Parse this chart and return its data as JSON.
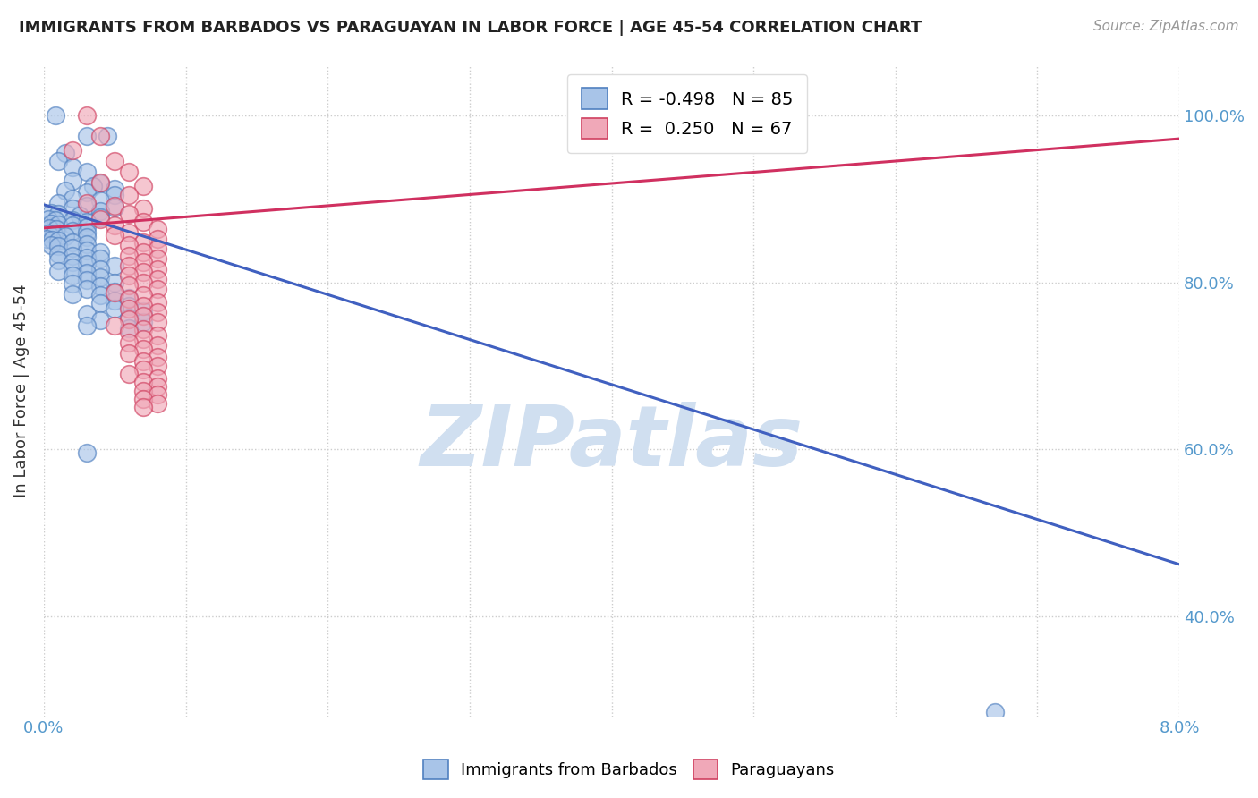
{
  "title": "IMMIGRANTS FROM BARBADOS VS PARAGUAYAN IN LABOR FORCE | AGE 45-54 CORRELATION CHART",
  "source": "Source: ZipAtlas.com",
  "ylabel": "In Labor Force | Age 45-54",
  "x_min": 0.0,
  "x_max": 0.08,
  "y_min": 0.28,
  "y_max": 1.06,
  "x_ticks": [
    0.0,
    0.01,
    0.02,
    0.03,
    0.04,
    0.05,
    0.06,
    0.07,
    0.08
  ],
  "x_tick_labels": [
    "0.0%",
    "",
    "",
    "",
    "",
    "",
    "",
    "",
    "8.0%"
  ],
  "y_ticks": [
    0.4,
    0.6,
    0.8,
    1.0
  ],
  "y_tick_labels": [
    "40.0%",
    "60.0%",
    "80.0%",
    "100.0%"
  ],
  "series1_color": "#a8c4e8",
  "series2_color": "#f0a8b8",
  "series1_edge": "#5080c0",
  "series2_edge": "#d04060",
  "trend1_color": "#4060c0",
  "trend2_color": "#d03060",
  "watermark": "ZIPatlas",
  "watermark_color": "#d0dff0",
  "blue_trend_x": [
    0.0,
    0.08
  ],
  "blue_trend_y": [
    0.893,
    0.462
  ],
  "pink_trend_x": [
    0.0,
    0.08
  ],
  "pink_trend_y": [
    0.865,
    0.972
  ],
  "blue_dots": [
    [
      0.0008,
      1.0
    ],
    [
      0.003,
      0.975
    ],
    [
      0.0015,
      0.955
    ],
    [
      0.0045,
      0.975
    ],
    [
      0.001,
      0.945
    ],
    [
      0.002,
      0.938
    ],
    [
      0.003,
      0.932
    ],
    [
      0.002,
      0.922
    ],
    [
      0.004,
      0.918
    ],
    [
      0.0035,
      0.915
    ],
    [
      0.005,
      0.912
    ],
    [
      0.0015,
      0.91
    ],
    [
      0.003,
      0.908
    ],
    [
      0.005,
      0.905
    ],
    [
      0.002,
      0.9
    ],
    [
      0.004,
      0.898
    ],
    [
      0.001,
      0.895
    ],
    [
      0.003,
      0.892
    ],
    [
      0.005,
      0.89
    ],
    [
      0.002,
      0.888
    ],
    [
      0.004,
      0.885
    ],
    [
      0.0005,
      0.883
    ],
    [
      0.001,
      0.882
    ],
    [
      0.0025,
      0.88
    ],
    [
      0.004,
      0.878
    ],
    [
      0.0003,
      0.876
    ],
    [
      0.0008,
      0.875
    ],
    [
      0.002,
      0.874
    ],
    [
      0.003,
      0.872
    ],
    [
      0.0005,
      0.87
    ],
    [
      0.001,
      0.869
    ],
    [
      0.002,
      0.868
    ],
    [
      0.003,
      0.866
    ],
    [
      0.0004,
      0.865
    ],
    [
      0.0009,
      0.864
    ],
    [
      0.002,
      0.862
    ],
    [
      0.003,
      0.86
    ],
    [
      0.0003,
      0.858
    ],
    [
      0.0007,
      0.857
    ],
    [
      0.0015,
      0.855
    ],
    [
      0.003,
      0.854
    ],
    [
      0.0002,
      0.852
    ],
    [
      0.0006,
      0.851
    ],
    [
      0.001,
      0.85
    ],
    [
      0.002,
      0.848
    ],
    [
      0.003,
      0.846
    ],
    [
      0.0005,
      0.844
    ],
    [
      0.001,
      0.843
    ],
    [
      0.002,
      0.841
    ],
    [
      0.003,
      0.838
    ],
    [
      0.004,
      0.836
    ],
    [
      0.001,
      0.834
    ],
    [
      0.002,
      0.832
    ],
    [
      0.003,
      0.83
    ],
    [
      0.004,
      0.828
    ],
    [
      0.001,
      0.826
    ],
    [
      0.002,
      0.824
    ],
    [
      0.003,
      0.822
    ],
    [
      0.005,
      0.82
    ],
    [
      0.002,
      0.818
    ],
    [
      0.004,
      0.816
    ],
    [
      0.001,
      0.813
    ],
    [
      0.003,
      0.811
    ],
    [
      0.002,
      0.808
    ],
    [
      0.004,
      0.806
    ],
    [
      0.003,
      0.803
    ],
    [
      0.005,
      0.8
    ],
    [
      0.002,
      0.798
    ],
    [
      0.004,
      0.795
    ],
    [
      0.003,
      0.792
    ],
    [
      0.005,
      0.789
    ],
    [
      0.002,
      0.786
    ],
    [
      0.004,
      0.784
    ],
    [
      0.006,
      0.781
    ],
    [
      0.005,
      0.778
    ],
    [
      0.004,
      0.775
    ],
    [
      0.006,
      0.772
    ],
    [
      0.005,
      0.768
    ],
    [
      0.007,
      0.765
    ],
    [
      0.003,
      0.762
    ],
    [
      0.006,
      0.758
    ],
    [
      0.004,
      0.755
    ],
    [
      0.007,
      0.752
    ],
    [
      0.003,
      0.748
    ],
    [
      0.006,
      0.745
    ],
    [
      0.003,
      0.596
    ],
    [
      0.067,
      0.285
    ]
  ],
  "pink_dots": [
    [
      0.003,
      1.0
    ],
    [
      0.004,
      0.975
    ],
    [
      0.002,
      0.958
    ],
    [
      0.005,
      0.945
    ],
    [
      0.006,
      0.932
    ],
    [
      0.004,
      0.92
    ],
    [
      0.007,
      0.915
    ],
    [
      0.006,
      0.905
    ],
    [
      0.003,
      0.895
    ],
    [
      0.005,
      0.892
    ],
    [
      0.007,
      0.888
    ],
    [
      0.006,
      0.882
    ],
    [
      0.004,
      0.876
    ],
    [
      0.007,
      0.872
    ],
    [
      0.005,
      0.868
    ],
    [
      0.008,
      0.864
    ],
    [
      0.006,
      0.86
    ],
    [
      0.005,
      0.856
    ],
    [
      0.008,
      0.852
    ],
    [
      0.007,
      0.848
    ],
    [
      0.006,
      0.844
    ],
    [
      0.008,
      0.84
    ],
    [
      0.007,
      0.836
    ],
    [
      0.006,
      0.832
    ],
    [
      0.008,
      0.828
    ],
    [
      0.007,
      0.824
    ],
    [
      0.006,
      0.82
    ],
    [
      0.008,
      0.816
    ],
    [
      0.007,
      0.812
    ],
    [
      0.006,
      0.808
    ],
    [
      0.008,
      0.804
    ],
    [
      0.007,
      0.8
    ],
    [
      0.006,
      0.796
    ],
    [
      0.008,
      0.792
    ],
    [
      0.005,
      0.788
    ],
    [
      0.007,
      0.784
    ],
    [
      0.006,
      0.78
    ],
    [
      0.008,
      0.776
    ],
    [
      0.007,
      0.772
    ],
    [
      0.006,
      0.768
    ],
    [
      0.008,
      0.764
    ],
    [
      0.007,
      0.76
    ],
    [
      0.006,
      0.756
    ],
    [
      0.008,
      0.752
    ],
    [
      0.005,
      0.748
    ],
    [
      0.007,
      0.744
    ],
    [
      0.006,
      0.74
    ],
    [
      0.008,
      0.736
    ],
    [
      0.007,
      0.732
    ],
    [
      0.006,
      0.728
    ],
    [
      0.008,
      0.724
    ],
    [
      0.007,
      0.72
    ],
    [
      0.006,
      0.715
    ],
    [
      0.008,
      0.71
    ],
    [
      0.007,
      0.705
    ],
    [
      0.008,
      0.7
    ],
    [
      0.007,
      0.695
    ],
    [
      0.006,
      0.69
    ],
    [
      0.008,
      0.685
    ],
    [
      0.007,
      0.68
    ],
    [
      0.008,
      0.675
    ],
    [
      0.007,
      0.67
    ],
    [
      0.008,
      0.665
    ],
    [
      0.007,
      0.66
    ],
    [
      0.008,
      0.655
    ],
    [
      0.007,
      0.65
    ]
  ]
}
